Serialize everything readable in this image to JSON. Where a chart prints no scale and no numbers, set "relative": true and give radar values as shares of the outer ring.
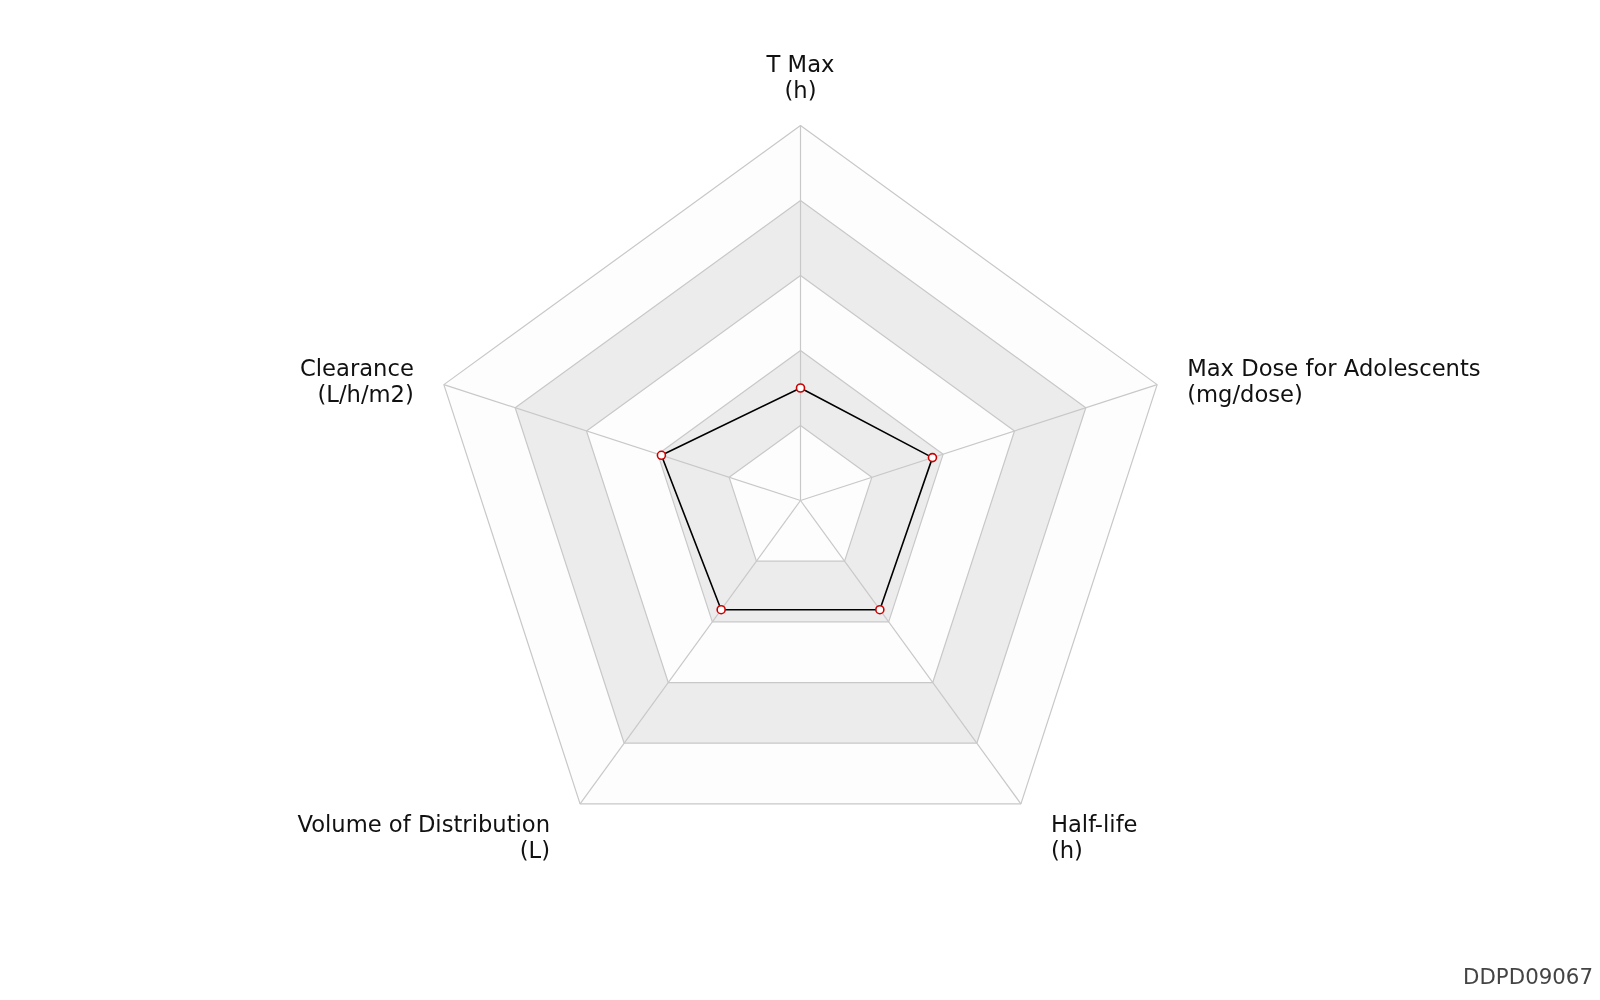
{
  "chart_data": {
    "type": "radar",
    "relative": true,
    "grid": true,
    "marker": "circle",
    "categories": [
      "T Max\n(h)",
      "Max Dose for Adolescents\n(mg/dose)",
      "Half-life\n(h)",
      "Volume of Distribution\n(L)",
      "Clearance\n(L/h/m2)"
    ],
    "series": [
      {
        "color": "#000000",
        "values": [
          0.3,
          0.37,
          0.36,
          0.36,
          0.39
        ]
      }
    ],
    "annotations": [
      "DDPD09067"
    ]
  }
}
